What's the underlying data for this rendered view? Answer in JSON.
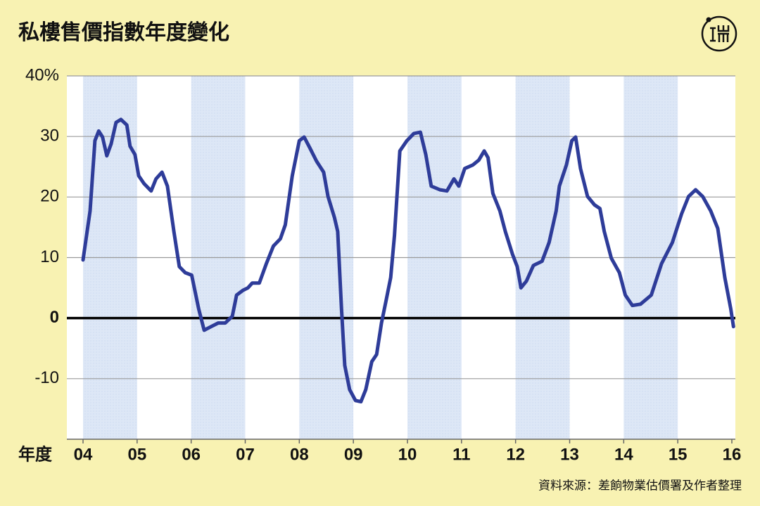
{
  "chart_data": {
    "type": "line",
    "title": "私樓售價指數年度變化",
    "x_label": "年度",
    "source": "資料來源：差餉物業估價署及作者整理",
    "color": "#2e3c99",
    "x": [
      2004.0,
      2004.13,
      2004.22,
      2004.29,
      2004.36,
      2004.44,
      2004.52,
      2004.61,
      2004.7,
      2004.81,
      2004.87,
      2004.96,
      2005.03,
      2005.13,
      2005.26,
      2005.35,
      2005.46,
      2005.56,
      2005.68,
      2005.78,
      2005.89,
      2006.01,
      2006.14,
      2006.24,
      2006.37,
      2006.5,
      2006.63,
      2006.76,
      2006.84,
      2006.96,
      2007.05,
      2007.13,
      2007.26,
      2007.39,
      2007.52,
      2007.65,
      2007.74,
      2007.87,
      2008.0,
      2008.09,
      2008.19,
      2008.32,
      2008.45,
      2008.53,
      2008.65,
      2008.71,
      2008.78,
      2008.84,
      2008.93,
      2009.04,
      2009.14,
      2009.23,
      2009.34,
      2009.43,
      2009.52,
      2009.6,
      2009.69,
      2009.76,
      2009.86,
      2009.99,
      2010.12,
      2010.24,
      2010.34,
      2010.44,
      2010.6,
      2010.73,
      2010.86,
      2010.95,
      2011.06,
      2011.21,
      2011.32,
      2011.42,
      2011.49,
      2011.58,
      2011.71,
      2011.81,
      2011.94,
      2012.03,
      2012.1,
      2012.2,
      2012.33,
      2012.49,
      2012.62,
      2012.75,
      2012.81,
      2012.94,
      2013.04,
      2013.11,
      2013.2,
      2013.33,
      2013.46,
      2013.56,
      2013.64,
      2013.77,
      2013.92,
      2014.03,
      2014.16,
      2014.31,
      2014.51,
      2014.7,
      2014.9,
      2015.07,
      2015.2,
      2015.33,
      2015.46,
      2015.61,
      2015.74,
      2015.87,
      2015.98,
      2016.03
    ],
    "values": [
      9.6,
      17.7,
      29.3,
      30.9,
      29.9,
      26.8,
      28.8,
      32.3,
      32.8,
      31.9,
      28.4,
      27.0,
      23.5,
      22.2,
      21.0,
      23.0,
      24.1,
      21.8,
      14.3,
      8.5,
      7.5,
      7.1,
      1.5,
      -2.0,
      -1.4,
      -0.8,
      -0.8,
      0.3,
      3.8,
      4.6,
      5.0,
      5.8,
      5.8,
      9.0,
      11.9,
      13.1,
      15.4,
      23.5,
      29.3,
      29.9,
      28.2,
      25.9,
      24.1,
      20.1,
      16.6,
      14.3,
      1.5,
      -7.8,
      -11.8,
      -13.6,
      -13.8,
      -11.8,
      -7.2,
      -6.0,
      -0.8,
      2.7,
      6.7,
      13.7,
      27.6,
      29.3,
      30.5,
      30.7,
      27.0,
      21.8,
      21.2,
      21.0,
      23.0,
      21.8,
      24.7,
      25.3,
      26.1,
      27.6,
      26.5,
      20.6,
      17.7,
      14.3,
      10.6,
      8.5,
      5.0,
      6.1,
      8.7,
      9.4,
      12.5,
      17.7,
      21.8,
      25.3,
      29.3,
      29.9,
      24.7,
      20.1,
      18.7,
      18.1,
      14.3,
      9.9,
      7.5,
      3.8,
      2.1,
      2.3,
      3.8,
      9.0,
      12.5,
      17.2,
      20.1,
      21.2,
      20.1,
      17.7,
      14.8,
      6.7,
      1.5,
      -1.4
    ],
    "xlim": [
      2004,
      2016
    ],
    "xticks": [
      {
        "value": 2004,
        "label": "04"
      },
      {
        "value": 2005,
        "label": "05"
      },
      {
        "value": 2006,
        "label": "06"
      },
      {
        "value": 2007,
        "label": "07"
      },
      {
        "value": 2008,
        "label": "08"
      },
      {
        "value": 2009,
        "label": "09"
      },
      {
        "value": 2010,
        "label": "10"
      },
      {
        "value": 2011,
        "label": "11"
      },
      {
        "value": 2012,
        "label": "12"
      },
      {
        "value": 2013,
        "label": "13"
      },
      {
        "value": 2014,
        "label": "14"
      },
      {
        "value": 2015,
        "label": "15"
      },
      {
        "value": 2016,
        "label": "16"
      }
    ],
    "ylim": [
      -20,
      40
    ],
    "yticks": [
      -10,
      0,
      10,
      20,
      30,
      {
        "value": 40,
        "label": "40%"
      }
    ],
    "grid": true
  }
}
